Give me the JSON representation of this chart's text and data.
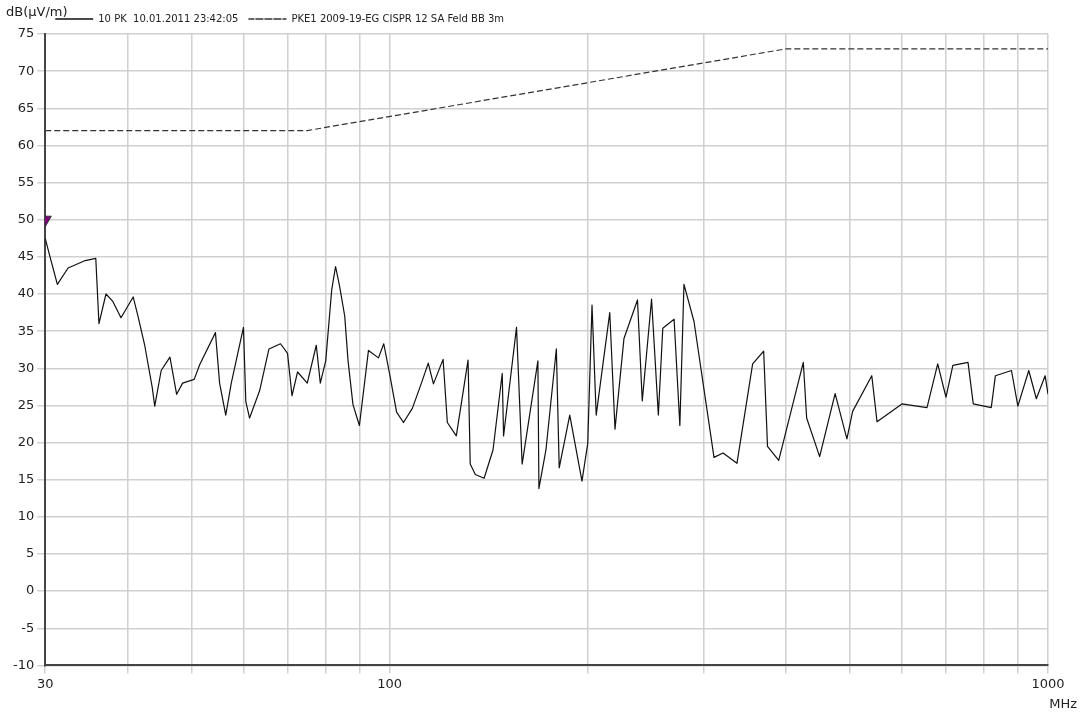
{
  "chart_data": {
    "type": "line",
    "ylabel": "dB(µV/m)",
    "xlabel": "MHz",
    "log": "x",
    "grid": true,
    "legend": "top left",
    "marker": "none",
    "xlim": [
      30,
      1000
    ],
    "xticks": [
      30,
      {
        "value": 40,
        "label": null
      },
      {
        "value": 50,
        "label": null
      },
      {
        "value": 60,
        "label": null
      },
      {
        "value": 70,
        "label": null
      },
      {
        "value": 80,
        "label": null
      },
      {
        "value": 90,
        "label": null
      },
      100,
      {
        "value": 200,
        "label": null
      },
      {
        "value": 300,
        "label": null
      },
      {
        "value": 400,
        "label": null
      },
      {
        "value": 500,
        "label": null
      },
      {
        "value": 600,
        "label": null
      },
      {
        "value": 700,
        "label": null
      },
      {
        "value": 800,
        "label": null
      },
      {
        "value": 900,
        "label": null
      },
      1000
    ],
    "ylim": [
      -10,
      75
    ],
    "yticks": [
      -10,
      -5,
      0,
      5,
      10,
      15,
      20,
      25,
      30,
      35,
      40,
      45,
      50,
      55,
      60,
      65,
      70,
      75
    ],
    "series": [
      {
        "name": "10 PK  10.01.2011 23:42:05",
        "color": "#111111",
        "line_style": "solid",
        "x": [
          30,
          30.4,
          31.3,
          32.5,
          34.5,
          35.8,
          36.2,
          37.1,
          38,
          39.1,
          40.8,
          41.5,
          42.5,
          43.6,
          44,
          45,
          46.4,
          47.5,
          48.5,
          50.5,
          51.5,
          54.4,
          55.2,
          56.4,
          57.5,
          60,
          60.5,
          61.3,
          63.5,
          65.6,
          68.3,
          70,
          71.1,
          72.5,
          75,
          77.4,
          78.5,
          80,
          81.7,
          82.8,
          84,
          85.5,
          86.5,
          88,
          90,
          92.9,
          96.2,
          98,
          100,
          102.5,
          105,
          108.3,
          111.7,
          114.5,
          116.6,
          120.6,
          122.4,
          126.3,
          131.6,
          132.6,
          135,
          139.2,
          143.6,
          148.3,
          149,
          155.9,
          159,
          168,
          168.6,
          172.8,
          179.2,
          181,
          187.8,
          196,
          200,
          203,
          206,
          216,
          220,
          227,
          238,
          242,
          250,
          256,
          260,
          270.5,
          276,
          280,
          290,
          311,
          321,
          337,
          356,
          370,
          375,
          390,
          425,
          430,
          450,
          475,
          495,
          505,
          540,
          550,
          600,
          655,
          680,
          700,
          717,
          756,
          770,
          820,
          832,
          880,
          900,
          935,
          960,
          990,
          1000
        ],
        "values": [
          47.5,
          45.5,
          41.3,
          43.5,
          44.5,
          44.8,
          36,
          40,
          39,
          36.8,
          39.6,
          37,
          33,
          27.5,
          24.9,
          29.7,
          31.5,
          26.5,
          28,
          28.5,
          30.5,
          34.8,
          28,
          23.7,
          28,
          35.5,
          25.5,
          23.3,
          27,
          32.6,
          33.3,
          32,
          26.3,
          29.5,
          28,
          33.1,
          28,
          31,
          40.6,
          43.7,
          41,
          37,
          31,
          25.1,
          22.3,
          32.4,
          31.4,
          33.3,
          29.3,
          24.1,
          22.7,
          24.6,
          27.9,
          30.7,
          27.9,
          31.2,
          22.7,
          20.9,
          31.1,
          17.1,
          15.7,
          15.2,
          19,
          29.3,
          20.9,
          35.5,
          17.1,
          31,
          13.8,
          19,
          32.6,
          16.6,
          23.7,
          14.8,
          19.9,
          38.5,
          23.7,
          37.5,
          21.8,
          34,
          39.2,
          25.6,
          39.3,
          23.7,
          35.4,
          36.6,
          22.3,
          41.3,
          36.3,
          18,
          18.6,
          17.2,
          30.6,
          32.3,
          19.5,
          17.6,
          30.8,
          23.3,
          18.1,
          26.6,
          20.5,
          24.2,
          29,
          22.8,
          25.2,
          24.7,
          30.6,
          26.1,
          30.4,
          30.8,
          25.2,
          24.7,
          29,
          29.7,
          24.9,
          29.7,
          25.9,
          29,
          26.5
        ]
      },
      {
        "name": "PKE1 2009-19-EG CISPR 12 SA Feld BB 3m",
        "color": "#333333",
        "line_style": "dashed",
        "x": [
          30,
          75,
          400,
          1000
        ],
        "values": [
          62,
          62,
          73,
          73
        ]
      },
      {
        "type": "scatter",
        "color": "#800080",
        "marker": "triangle",
        "x": [
          30
        ],
        "values": [
          50
        ]
      }
    ]
  }
}
